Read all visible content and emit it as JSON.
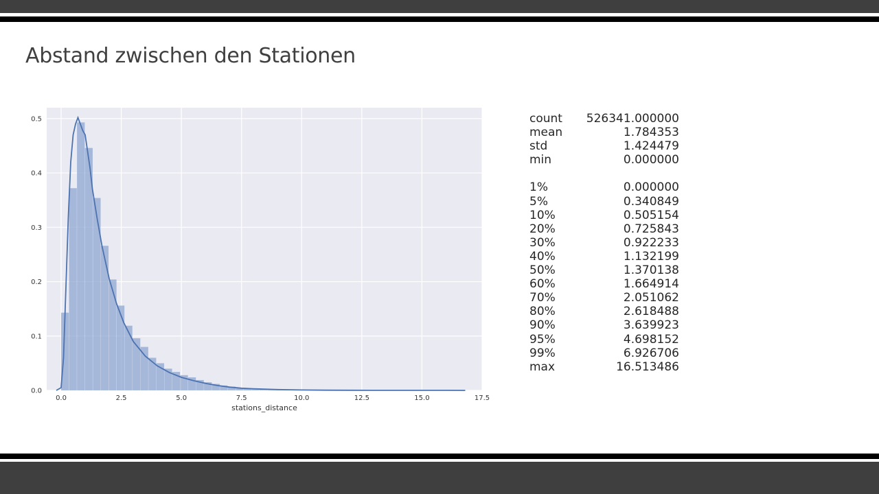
{
  "slide": {
    "title": "Abstand zwischen den Stationen"
  },
  "chart_data": {
    "type": "bar",
    "xlabel": "stations_distance",
    "ylabel": "",
    "xlim": [
      -0.6,
      17.5
    ],
    "ylim": [
      0,
      0.52
    ],
    "xticks": [
      "0.0",
      "2.5",
      "5.0",
      "7.5",
      "10.0",
      "12.5",
      "15.0",
      "17.5"
    ],
    "yticks": [
      "0.0",
      "0.1",
      "0.2",
      "0.3",
      "0.4",
      "0.5"
    ],
    "grid": true,
    "histogram": {
      "bin_width": 0.33,
      "bin_starts": [
        0.0,
        0.33,
        0.66,
        0.99,
        1.32,
        1.65,
        1.98,
        2.31,
        2.64,
        2.97,
        3.3,
        3.63,
        3.96,
        4.29,
        4.62,
        4.95,
        5.28,
        5.61,
        5.94,
        6.27,
        6.6,
        6.93,
        7.26,
        7.59,
        7.92,
        8.25,
        8.58,
        8.91,
        9.24,
        9.57,
        9.9,
        10.23,
        10.56,
        10.89,
        11.22,
        11.55,
        11.88,
        12.21,
        12.54,
        12.87,
        13.2,
        13.53,
        13.86,
        14.19,
        14.52,
        14.85,
        15.18,
        15.51,
        15.84,
        16.17
      ],
      "densities": [
        0.143,
        0.372,
        0.493,
        0.446,
        0.354,
        0.266,
        0.204,
        0.156,
        0.119,
        0.096,
        0.08,
        0.06,
        0.05,
        0.04,
        0.034,
        0.028,
        0.024,
        0.019,
        0.015,
        0.012,
        0.009,
        0.007,
        0.005,
        0.004,
        0.003,
        0.0025,
        0.002,
        0.0015,
        0.0012,
        0.001,
        0.0008,
        0.0006,
        0.0005,
        0.0004,
        0.0003,
        0.0003,
        0.0002,
        0.0002,
        0.0002,
        0.0001,
        0.0001,
        0.0001,
        0.0001,
        0.0001,
        0.0001,
        0.0001,
        0.0001,
        0.0001,
        0.0001,
        0.0001
      ]
    },
    "kde": {
      "x": [
        -0.2,
        0.0,
        0.1,
        0.2,
        0.3,
        0.4,
        0.5,
        0.6,
        0.7,
        0.8,
        0.9,
        1.0,
        1.1,
        1.2,
        1.3,
        1.5,
        1.7,
        2.0,
        2.3,
        2.6,
        3.0,
        3.5,
        4.0,
        4.5,
        5.0,
        5.5,
        6.0,
        6.5,
        7.0,
        7.5,
        8.0,
        9.0,
        10.0,
        11.0,
        12.0,
        13.0,
        14.0,
        15.0,
        16.0,
        16.8
      ],
      "y": [
        0.0,
        0.005,
        0.06,
        0.19,
        0.32,
        0.42,
        0.47,
        0.49,
        0.502,
        0.49,
        0.478,
        0.47,
        0.44,
        0.41,
        0.37,
        0.315,
        0.265,
        0.205,
        0.16,
        0.125,
        0.09,
        0.063,
        0.045,
        0.033,
        0.024,
        0.018,
        0.013,
        0.009,
        0.006,
        0.004,
        0.003,
        0.0015,
        0.0008,
        0.0004,
        0.0002,
        0.0001,
        0.0001,
        0.0001,
        0.0001,
        0.0
      ]
    },
    "colors": {
      "bars": "#8fa7d0",
      "kde": "#4c72b0",
      "plot_bg": "#eaeaf2",
      "grid": "#ffffff"
    }
  },
  "stats": {
    "rows": [
      {
        "key": "count",
        "value": "526341.000000"
      },
      {
        "key": "mean",
        "value": "1.784353"
      },
      {
        "key": "std",
        "value": "1.424479"
      },
      {
        "key": "min",
        "value": "0.000000"
      }
    ],
    "percentiles": [
      {
        "key": "1%",
        "value": "0.000000"
      },
      {
        "key": "5%",
        "value": "0.340849"
      },
      {
        "key": "10%",
        "value": "0.505154"
      },
      {
        "key": "20%",
        "value": "0.725843"
      },
      {
        "key": "30%",
        "value": "0.922233"
      },
      {
        "key": "40%",
        "value": "1.132199"
      },
      {
        "key": "50%",
        "value": "1.370138"
      },
      {
        "key": "60%",
        "value": "1.664914"
      },
      {
        "key": "70%",
        "value": "2.051062"
      },
      {
        "key": "80%",
        "value": "2.618488"
      },
      {
        "key": "90%",
        "value": "3.639923"
      },
      {
        "key": "95%",
        "value": "4.698152"
      },
      {
        "key": "99%",
        "value": "6.926706"
      },
      {
        "key": "max",
        "value": "16.513486"
      }
    ]
  }
}
